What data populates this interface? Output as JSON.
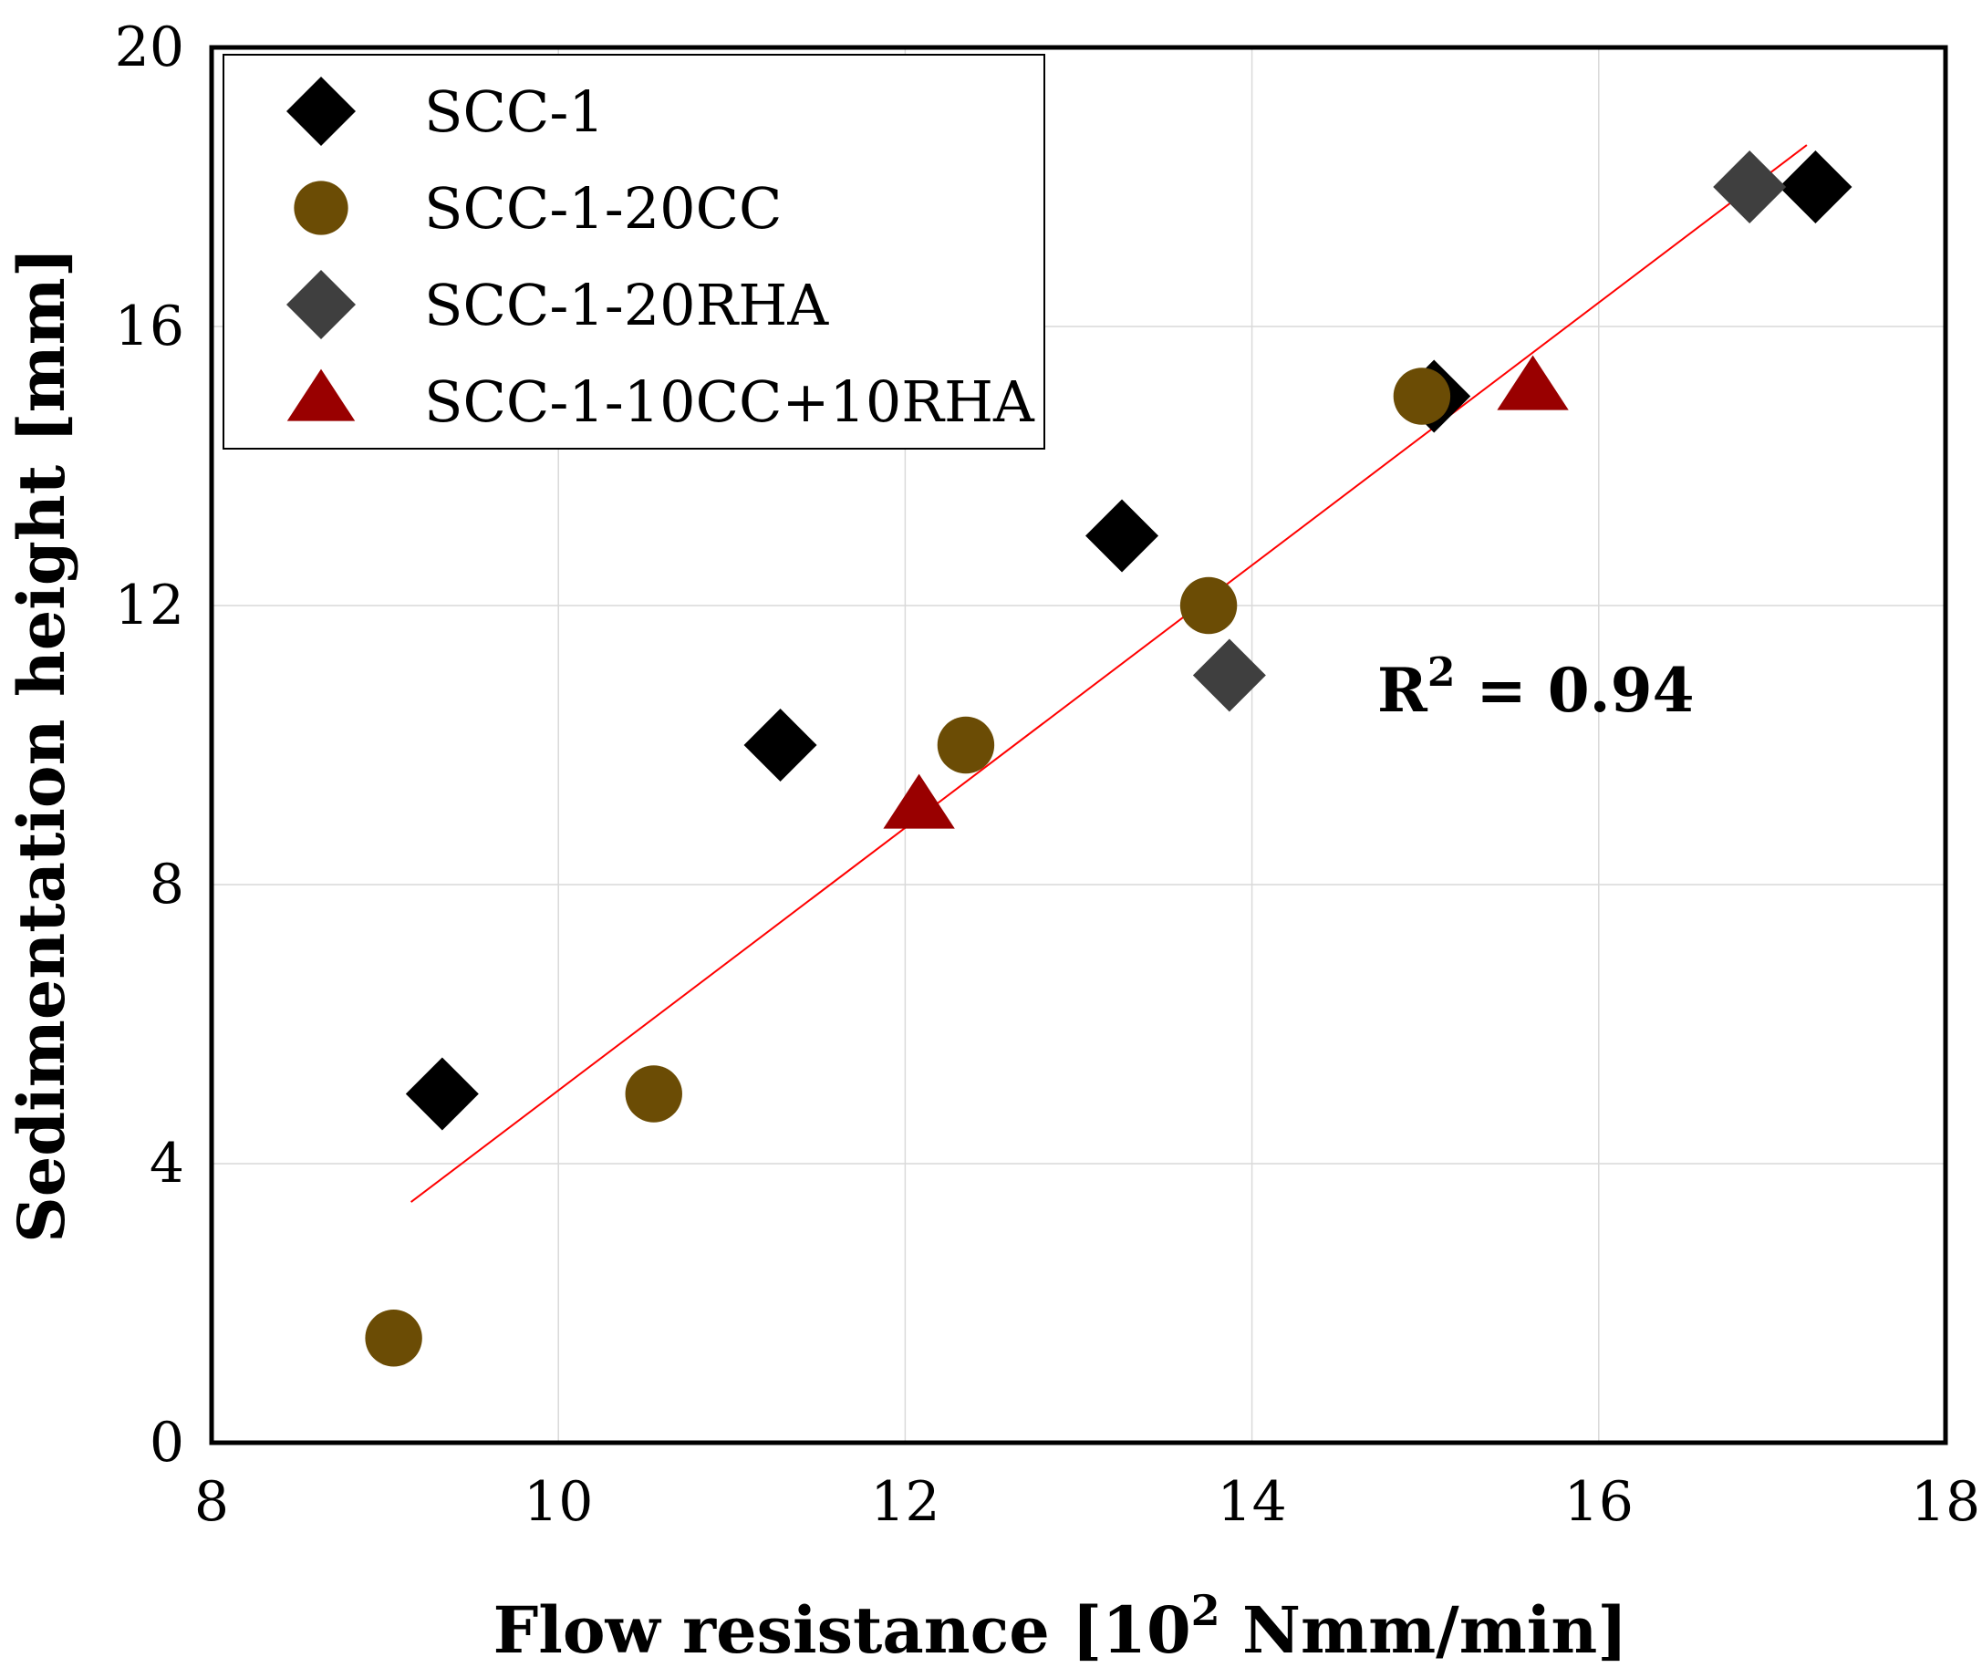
{
  "chart_data": {
    "type": "scatter",
    "title": "",
    "xlabel": "Flow resistance [10",
    "xlabel_superscript": "2",
    "xlabel_suffix": " Nmm/min]",
    "ylabel": "Sedimentation height [mm]",
    "xlim": [
      8,
      18
    ],
    "ylim": [
      0,
      20
    ],
    "xticks": [
      8,
      10,
      12,
      14,
      16,
      18
    ],
    "yticks": [
      0,
      4,
      8,
      12,
      16,
      20
    ],
    "grid": true,
    "legend_position": "top-left",
    "series": [
      {
        "name": "SCC-1",
        "marker": "diamond",
        "color": "#000000",
        "points": [
          [
            9.33,
            5.0
          ],
          [
            11.28,
            10.0
          ],
          [
            13.25,
            13.0
          ],
          [
            15.05,
            15.0
          ],
          [
            17.25,
            18.0
          ]
        ]
      },
      {
        "name": "SCC-1-20CC",
        "marker": "circle",
        "color": "#6b4c05",
        "points": [
          [
            9.05,
            1.5
          ],
          [
            10.55,
            5.0
          ],
          [
            12.35,
            10.0
          ],
          [
            13.75,
            12.0
          ],
          [
            14.98,
            15.0
          ]
        ]
      },
      {
        "name": "SCC-1-20RHA",
        "marker": "diamond",
        "color": "#3f3f3f",
        "points": [
          [
            13.87,
            11.0
          ],
          [
            16.87,
            18.0
          ]
        ]
      },
      {
        "name": "SCC-1-10CC+10RHA",
        "marker": "triangle",
        "color": "#990000",
        "points": [
          [
            12.08,
            9.1
          ],
          [
            15.62,
            15.1
          ]
        ]
      }
    ],
    "trendline": {
      "color": "#ff0000",
      "x": [
        9.15,
        17.2
      ],
      "y": [
        3.45,
        18.6
      ]
    },
    "annotation": {
      "text": "R",
      "superscript": "2",
      "suffix": " = 0.94"
    }
  }
}
